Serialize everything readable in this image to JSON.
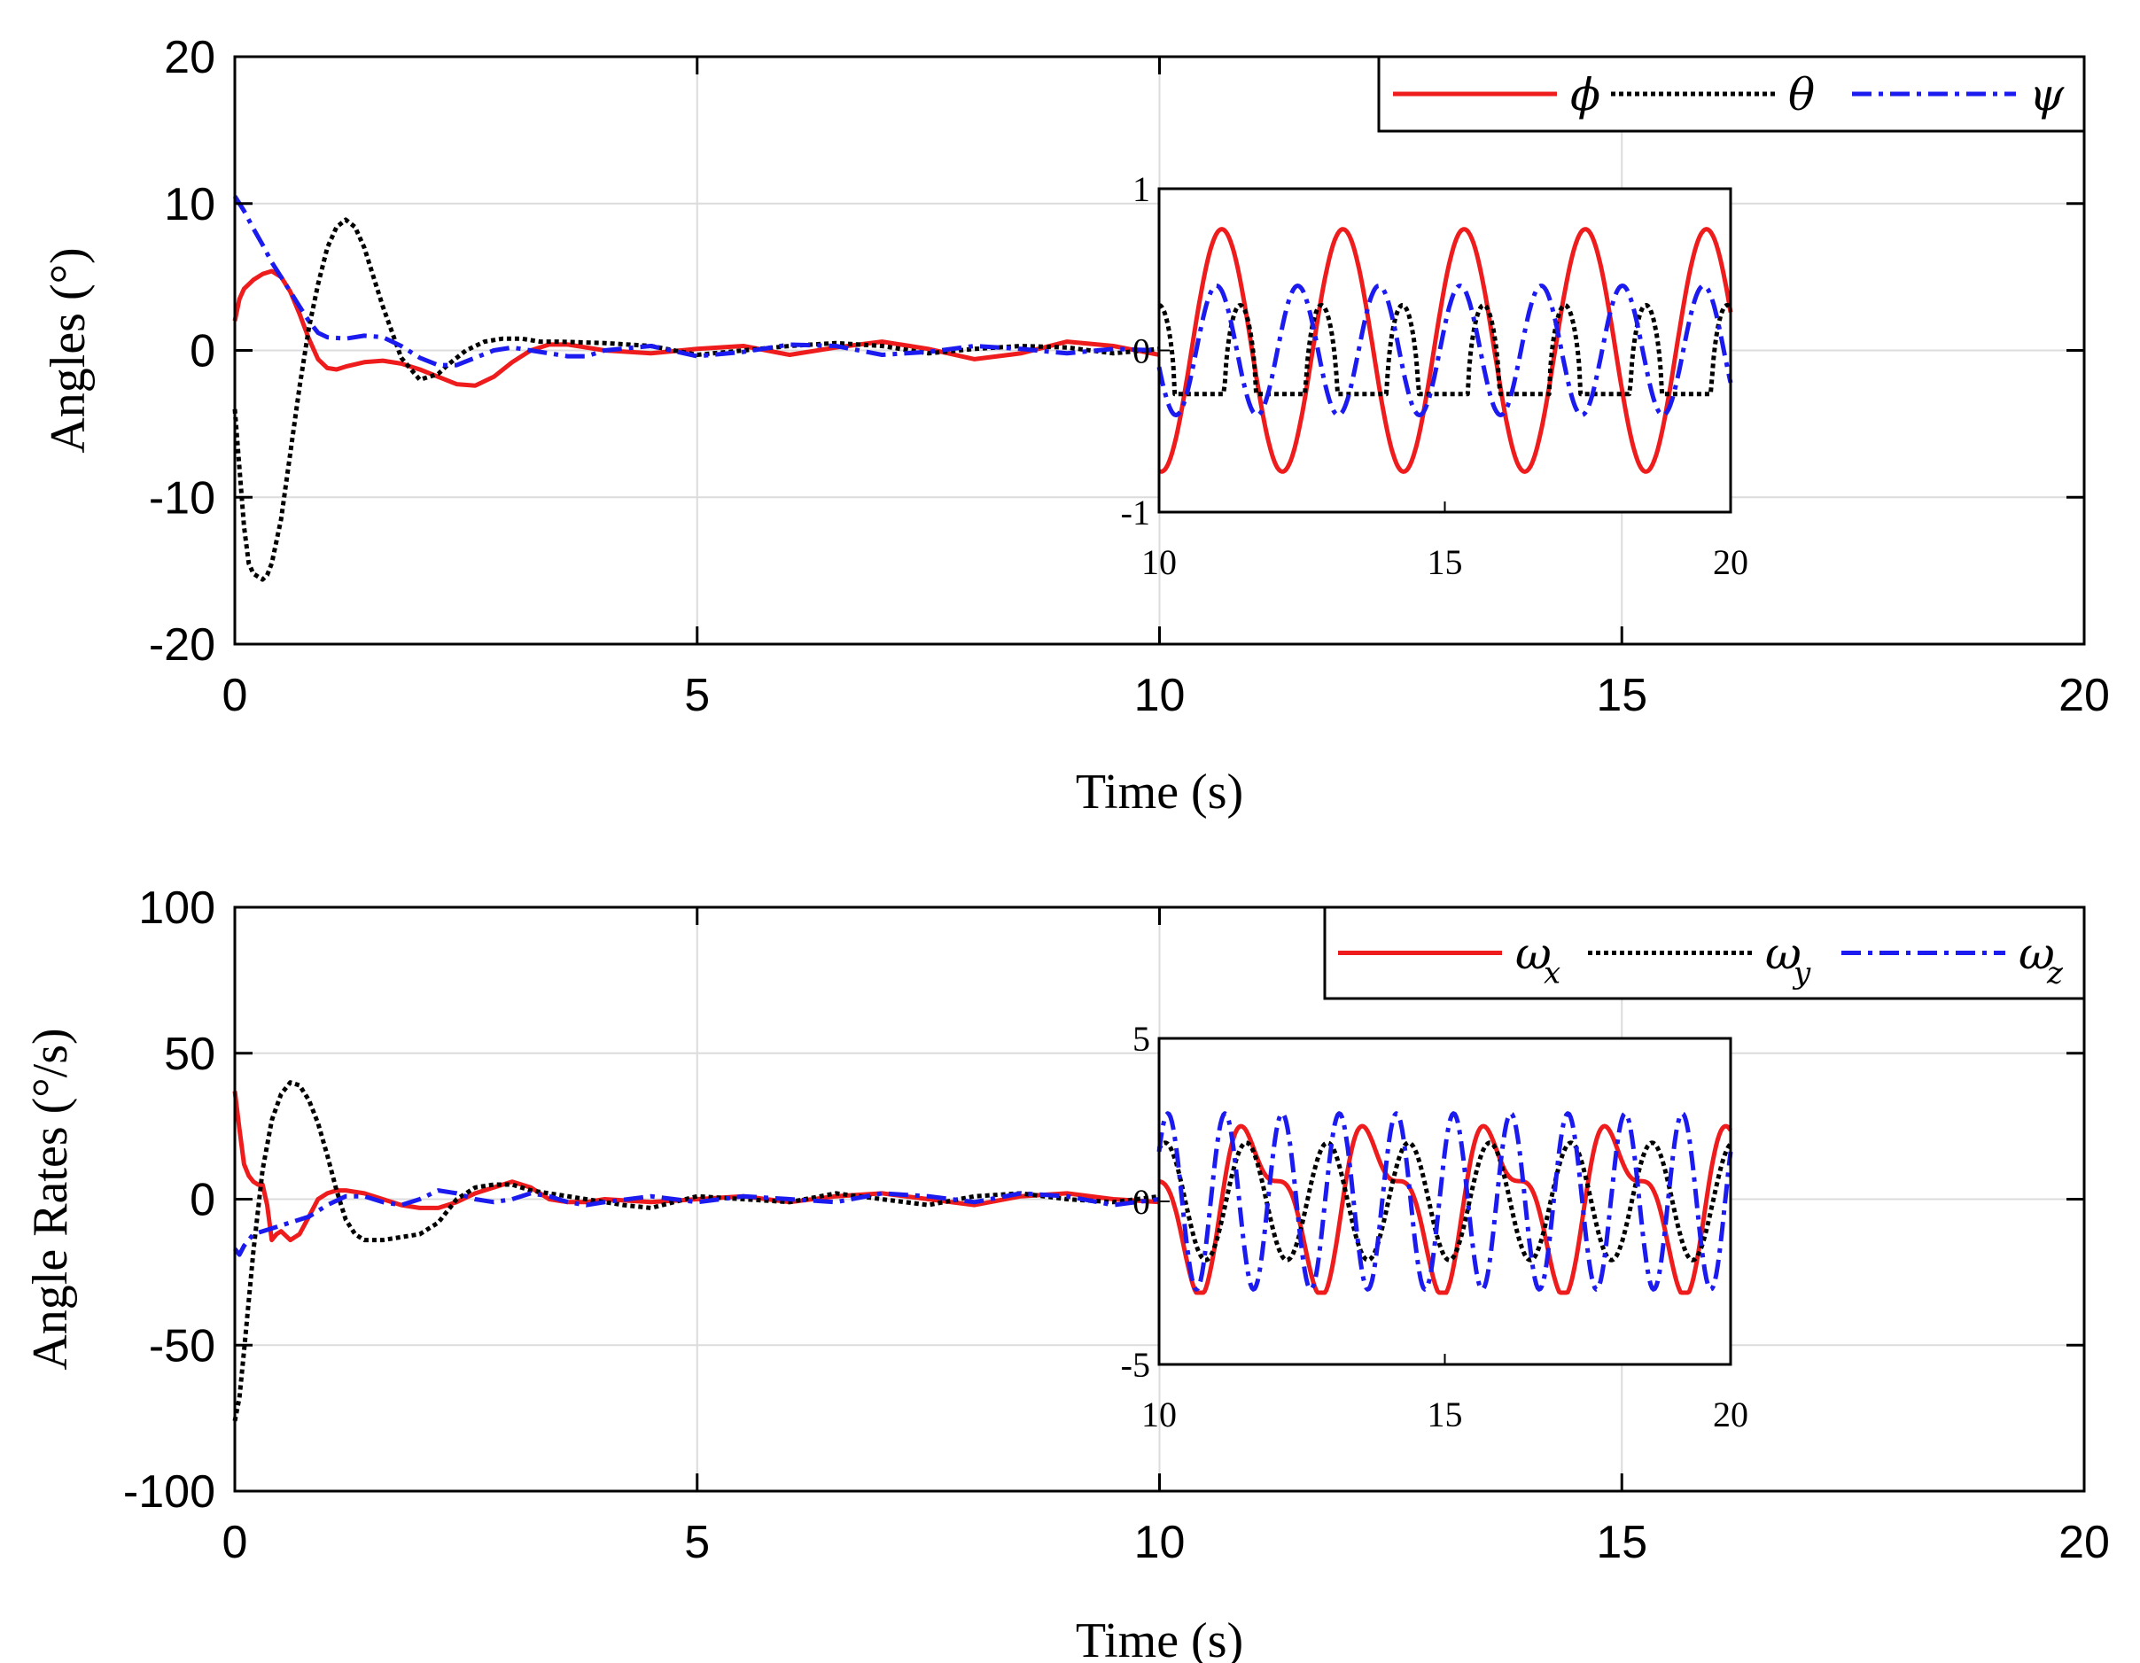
{
  "chart_data": [
    {
      "type": "line",
      "xlabel": "Time (s)",
      "ylabel": "Angles (°)",
      "xlim": [
        0,
        20
      ],
      "ylim": [
        -20,
        20
      ],
      "xticks": [
        "0",
        "5",
        "10",
        "15",
        "20"
      ],
      "yticks": [
        "20",
        "10",
        "0",
        "-10",
        "-20"
      ],
      "grid": true,
      "legend_position": "top-right",
      "series": [
        {
          "name": "ϕ",
          "sub": "",
          "color": "#ee1c1c",
          "style": "solid",
          "x": [
            0,
            0.05,
            0.1,
            0.2,
            0.3,
            0.4,
            0.5,
            0.6,
            0.7,
            0.8,
            0.9,
            1.0,
            1.1,
            1.2,
            1.4,
            1.6,
            1.8,
            2.0,
            2.2,
            2.4,
            2.6,
            2.8,
            3.0,
            3.2,
            3.4,
            3.6,
            3.8,
            4.0,
            4.5,
            5.0,
            5.5,
            6.0,
            6.5,
            7.0,
            7.5,
            8.0,
            8.5,
            9.0,
            9.5,
            10.0
          ],
          "y": [
            2,
            3.5,
            4.2,
            4.8,
            5.2,
            5.4,
            5.0,
            4.0,
            2.5,
            0.8,
            -0.6,
            -1.2,
            -1.3,
            -1.1,
            -0.8,
            -0.7,
            -0.9,
            -1.3,
            -1.8,
            -2.3,
            -2.4,
            -1.8,
            -0.8,
            0.0,
            0.4,
            0.4,
            0.2,
            0.0,
            -0.2,
            0.1,
            0.3,
            -0.3,
            0.2,
            0.6,
            0.1,
            -0.6,
            -0.2,
            0.6,
            0.3,
            -0.3
          ]
        },
        {
          "name": "θ",
          "sub": "",
          "color": "#000000",
          "style": "dotted",
          "x": [
            0,
            0.05,
            0.1,
            0.15,
            0.2,
            0.25,
            0.3,
            0.35,
            0.4,
            0.5,
            0.6,
            0.7,
            0.8,
            0.9,
            1.0,
            1.1,
            1.2,
            1.3,
            1.4,
            1.5,
            1.6,
            1.8,
            2.0,
            2.2,
            2.3,
            2.5,
            2.7,
            2.9,
            3.1,
            3.3,
            3.5,
            4.0,
            4.5,
            5.0,
            5.5,
            6.0,
            6.5,
            7.0,
            7.5,
            8.0,
            8.5,
            9.0,
            9.5,
            10.0
          ],
          "y": [
            -4,
            -8,
            -12,
            -14.5,
            -15.2,
            -15.4,
            -15.6,
            -15.3,
            -14.5,
            -11.5,
            -7,
            -2.5,
            1.5,
            4.5,
            7.0,
            8.4,
            8.9,
            8.4,
            7.0,
            5.0,
            3.0,
            -0.5,
            -2.0,
            -1.6,
            -1.0,
            0.0,
            0.6,
            0.8,
            0.8,
            0.6,
            0.6,
            0.5,
            0.3,
            -0.3,
            0.0,
            0.3,
            0.5,
            0.3,
            -0.2,
            0.1,
            0.3,
            0.2,
            -0.2,
            0.1
          ]
        },
        {
          "name": "ψ",
          "sub": "",
          "color": "#1b1bf0",
          "style": "dashdot",
          "x": [
            0,
            0.1,
            0.2,
            0.3,
            0.4,
            0.5,
            0.6,
            0.7,
            0.8,
            0.9,
            1.0,
            1.2,
            1.4,
            1.6,
            1.8,
            2.0,
            2.2,
            2.4,
            2.6,
            2.8,
            3.0,
            3.2,
            3.4,
            3.6,
            3.8,
            4.0,
            4.5,
            5.0,
            5.5,
            6.0,
            6.5,
            7.0,
            7.5,
            8.0,
            8.5,
            9.0,
            9.5,
            10.0
          ],
          "y": [
            10.5,
            9.5,
            8.3,
            7.2,
            6.0,
            5.0,
            4.0,
            3.0,
            2.0,
            1.2,
            0.9,
            0.8,
            1.0,
            0.9,
            0.3,
            -0.5,
            -1.0,
            -1.0,
            -0.5,
            0.0,
            0.2,
            0.0,
            -0.2,
            -0.4,
            -0.4,
            0.0,
            0.3,
            -0.4,
            -0.1,
            0.4,
            0.3,
            -0.3,
            -0.1,
            0.3,
            0.1,
            -0.2,
            0.1,
            0.0
          ]
        }
      ],
      "inset": {
        "xlim": [
          10,
          20
        ],
        "ylim": [
          -1,
          1
        ],
        "xticks": [
          "10",
          "15",
          "20"
        ],
        "yticks": [
          "1",
          "0",
          "-1"
        ],
        "series": [
          {
            "name": "ϕ",
            "amplitude": 0.75,
            "period": 2.12,
            "phase": 4.6,
            "shape": "sine"
          },
          {
            "name": "θ",
            "amplitude": 0.25,
            "period": 1.42,
            "phase": 0.0,
            "shape": "pulse",
            "low": -0.27,
            "high": 0.28
          },
          {
            "name": "ψ",
            "amplitude": 0.4,
            "period": 1.42,
            "phase": 3.4,
            "shape": "sine"
          }
        ]
      }
    },
    {
      "type": "line",
      "xlabel": "Time (s)",
      "ylabel": "Angle Rates (°/s)",
      "xlim": [
        0,
        20
      ],
      "ylim": [
        -100,
        100
      ],
      "xticks": [
        "0",
        "5",
        "10",
        "15",
        "20"
      ],
      "yticks": [
        "100",
        "50",
        "0",
        "-50",
        "-100"
      ],
      "grid": true,
      "legend_position": "top-right",
      "series": [
        {
          "name": "ω",
          "sub": "x",
          "color": "#ee1c1c",
          "style": "solid",
          "x": [
            0,
            0.05,
            0.1,
            0.15,
            0.2,
            0.25,
            0.3,
            0.35,
            0.4,
            0.45,
            0.5,
            0.6,
            0.7,
            0.8,
            0.9,
            1.0,
            1.1,
            1.2,
            1.4,
            1.6,
            1.8,
            2.0,
            2.2,
            2.4,
            2.6,
            2.8,
            3.0,
            3.2,
            3.4,
            3.6,
            3.8,
            4.0,
            4.5,
            5.0,
            5.5,
            6.0,
            6.5,
            7.0,
            7.5,
            8.0,
            8.5,
            9.0,
            9.5,
            10.0
          ],
          "y": [
            37,
            24,
            12,
            8,
            6,
            5,
            5,
            -2,
            -14,
            -12,
            -11,
            -14,
            -12,
            -6,
            0,
            2,
            3,
            3,
            2,
            0,
            -2,
            -3,
            -3,
            -1,
            2,
            4,
            6,
            4,
            0,
            -1,
            -1,
            0,
            -1,
            0,
            1,
            -1,
            1,
            2,
            0,
            -2,
            1,
            2,
            0,
            -1
          ]
        },
        {
          "name": "ω",
          "sub": "y",
          "color": "#000000",
          "style": "dotted",
          "x": [
            0,
            0.05,
            0.1,
            0.2,
            0.3,
            0.4,
            0.5,
            0.6,
            0.7,
            0.8,
            0.9,
            1.0,
            1.1,
            1.2,
            1.3,
            1.4,
            1.5,
            1.6,
            1.8,
            2.0,
            2.2,
            2.4,
            2.6,
            2.8,
            3.0,
            3.2,
            3.4,
            3.6,
            3.8,
            4.0,
            4.2,
            4.5,
            5.0,
            5.5,
            6.0,
            6.5,
            7.0,
            7.5,
            8.0,
            8.5,
            9.0,
            9.5,
            10.0
          ],
          "y": [
            -76,
            -68,
            -52,
            -18,
            10,
            27,
            36,
            40,
            39,
            34,
            26,
            15,
            3,
            -7,
            -12,
            -14,
            -14,
            -14,
            -13,
            -12,
            -8,
            0,
            4,
            5,
            5,
            3,
            2,
            1,
            0,
            -1,
            -2,
            -3,
            1,
            0,
            -1,
            2,
            0,
            -2,
            1,
            2,
            0,
            -1,
            1
          ]
        },
        {
          "name": "ω",
          "sub": "z",
          "color": "#1b1bf0",
          "style": "dashdot",
          "x": [
            0,
            0.05,
            0.1,
            0.2,
            0.3,
            0.4,
            0.5,
            0.6,
            0.8,
            1.0,
            1.2,
            1.4,
            1.6,
            1.8,
            2.0,
            2.2,
            2.4,
            2.6,
            2.8,
            3.0,
            3.2,
            3.4,
            3.6,
            3.8,
            4.0,
            4.5,
            5.0,
            5.5,
            6.0,
            6.5,
            7.0,
            7.5,
            8.0,
            8.5,
            9.0,
            9.5,
            10.0
          ],
          "y": [
            -17,
            -19,
            -16,
            -12,
            -11,
            -10,
            -9,
            -8,
            -6,
            -2,
            1,
            1,
            -1,
            -2,
            0,
            3,
            2,
            0,
            -1,
            0,
            2,
            1,
            -1,
            -2,
            -1,
            1,
            -1,
            1,
            0,
            -1,
            2,
            1,
            -1,
            2,
            1,
            -2,
            0
          ]
        }
      ],
      "inset": {
        "xlim": [
          10,
          20
        ],
        "ylim": [
          -5,
          5
        ],
        "xticks": [
          "10",
          "15",
          "20"
        ],
        "yticks": [
          "5",
          "0",
          "-5"
        ],
        "series": [
          {
            "name": "ω_x",
            "amplitude": 2.8,
            "period": 2.12,
            "phase": 2.9,
            "shape": "peaky"
          },
          {
            "name": "ω_y",
            "amplitude": 1.8,
            "period": 1.42,
            "phase": 1.1,
            "shape": "sine"
          },
          {
            "name": "ω_z",
            "amplitude": 2.7,
            "period": 1.0,
            "phase": 0.6,
            "shape": "sine"
          }
        ]
      }
    }
  ]
}
